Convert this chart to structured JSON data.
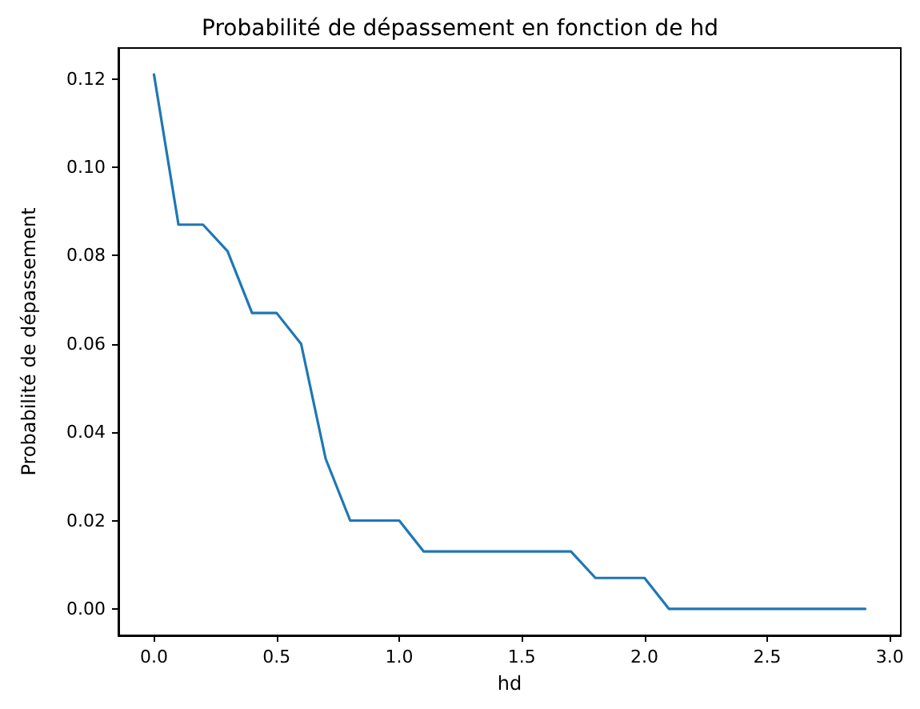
{
  "chart_data": {
    "type": "line",
    "title": "Probabilité de dépassement en fonction de hd",
    "xlabel": "hd",
    "ylabel": "Probabilité de dépassement",
    "x": [
      0,
      0.1,
      0.2,
      0.3,
      0.4,
      0.5,
      0.6,
      0.7,
      0.8,
      0.9,
      1.0,
      1.1,
      1.2,
      1.3,
      1.4,
      1.5,
      1.6,
      1.7,
      1.8,
      1.9,
      2.0,
      2.1,
      2.2,
      2.3,
      2.4,
      2.5,
      2.6,
      2.7,
      2.8,
      2.9
    ],
    "series": [
      {
        "color": "#1f77b4",
        "values": [
          0.121,
          0.087,
          0.087,
          0.081,
          0.067,
          0.067,
          0.06,
          0.034,
          0.02,
          0.02,
          0.02,
          0.013,
          0.013,
          0.013,
          0.013,
          0.013,
          0.013,
          0.013,
          0.007,
          0.007,
          0.007,
          0,
          0,
          0,
          0,
          0,
          0,
          0,
          0,
          0
        ]
      }
    ],
    "xlim": [
      -0.145,
      3.045
    ],
    "ylim": [
      -0.006,
      0.127
    ],
    "xticks": [
      {
        "value": 0,
        "label": "0.0"
      },
      {
        "value": 0.5,
        "label": "0.5"
      },
      {
        "value": 1,
        "label": "1.0"
      },
      {
        "value": 1.5,
        "label": "1.5"
      },
      {
        "value": 2,
        "label": "2.0"
      },
      {
        "value": 2.5,
        "label": "2.5"
      },
      {
        "value": 3,
        "label": "3.0"
      }
    ],
    "yticks": [
      {
        "value": 0,
        "label": "0.00"
      },
      {
        "value": 0.02,
        "label": "0.02"
      },
      {
        "value": 0.04,
        "label": "0.04"
      },
      {
        "value": 0.06,
        "label": "0.06"
      },
      {
        "value": 0.08,
        "label": "0.08"
      },
      {
        "value": 0.1,
        "label": "0.10"
      },
      {
        "value": 0.12,
        "label": "0.12"
      }
    ],
    "grid": false,
    "marker": "none",
    "line_style": "solid"
  }
}
